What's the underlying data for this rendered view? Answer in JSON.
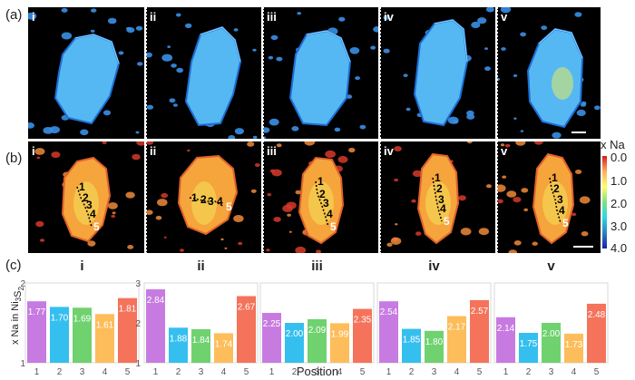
{
  "panel_labels": {
    "a": "(a)",
    "b": "(b)",
    "c": "(c)"
  },
  "tile_labels": [
    "i",
    "ii",
    "iii",
    "iv",
    "v"
  ],
  "colorbar": {
    "title": "x Na",
    "ticks": [
      "0.0",
      "1.0",
      "2.0",
      "3.0",
      "4.0"
    ],
    "colors": [
      "#d7191c",
      "#fdae61",
      "#ffff66",
      "#7fe07f",
      "#2bd6e6",
      "#2b83ba",
      "#1b1bb4"
    ]
  },
  "position_markers": [
    "1",
    "2",
    "3",
    "4",
    "5"
  ],
  "chart_data": [
    {
      "type": "bar",
      "title": "i",
      "categories": [
        "1",
        "2",
        "3",
        "4",
        "5"
      ],
      "values": [
        1.77,
        1.7,
        1.69,
        1.61,
        1.81
      ],
      "ylim": [
        1,
        2
      ],
      "yticks": [
        1,
        2
      ]
    },
    {
      "type": "bar",
      "title": "ii",
      "categories": [
        "1",
        "2",
        "3",
        "4",
        "5"
      ],
      "values": [
        2.84,
        1.88,
        1.84,
        1.74,
        2.67
      ],
      "ylim": [
        1,
        3
      ],
      "yticks": [
        1,
        2,
        3
      ]
    },
    {
      "type": "bar",
      "title": "iii",
      "categories": [
        "1",
        "2",
        "3",
        "4",
        "5"
      ],
      "values": [
        2.25,
        2.0,
        2.09,
        1.99,
        2.35
      ],
      "ylim": [
        1,
        3
      ],
      "yticks": []
    },
    {
      "type": "bar",
      "title": "iv",
      "categories": [
        "1",
        "2",
        "3",
        "4",
        "5"
      ],
      "values": [
        2.54,
        1.85,
        1.8,
        2.17,
        2.57
      ],
      "ylim": [
        1,
        3
      ],
      "yticks": []
    },
    {
      "type": "bar",
      "title": "v",
      "categories": [
        "1",
        "2",
        "3",
        "4",
        "5"
      ],
      "values": [
        2.14,
        1.75,
        2.0,
        1.73,
        2.48
      ],
      "ylim": [
        1,
        3
      ],
      "yticks": []
    }
  ],
  "chart_common": {
    "ylabel_prefix": "x Na in Ni",
    "ylabel_sub1": "3",
    "ylabel_mid": "S",
    "ylabel_sub2": "2",
    "xlabel": "Position",
    "bar_colors": [
      "#c77be0",
      "#35bfef",
      "#6fd26f",
      "#fdbd5a",
      "#f4735a"
    ]
  }
}
